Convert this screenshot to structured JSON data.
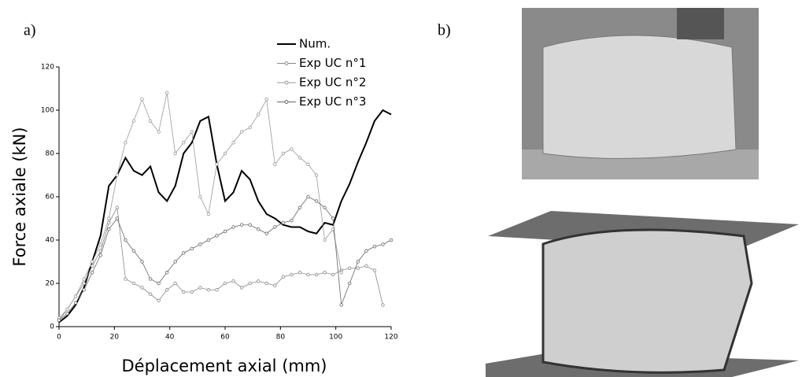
{
  "panel_labels": [
    "a)",
    "b)"
  ],
  "chart_data": {
    "type": "line",
    "xlabel": "Déplacement axial (mm)",
    "ylabel": "Force axiale (kN)",
    "xlim": [
      0,
      120
    ],
    "ylim": [
      0,
      120
    ],
    "xticks": [
      0,
      20,
      40,
      60,
      80,
      100,
      120
    ],
    "yticks": [
      0,
      20,
      40,
      60,
      80,
      100,
      120
    ],
    "x": [
      0,
      3,
      6,
      9,
      12,
      15,
      18,
      21,
      24,
      27,
      30,
      33,
      36,
      39,
      42,
      45,
      48,
      51,
      54,
      57,
      60,
      63,
      66,
      69,
      72,
      75,
      78,
      81,
      84,
      87,
      90,
      93,
      96,
      99,
      102,
      105,
      108,
      111,
      114,
      117,
      120
    ],
    "series": [
      {
        "name": "Num.",
        "color": "#000000",
        "values": [
          2,
          5,
          10,
          18,
          30,
          42,
          65,
          70,
          78,
          72,
          70,
          74,
          62,
          58,
          65,
          80,
          85,
          95,
          97,
          75,
          58,
          62,
          72,
          68,
          58,
          52,
          50,
          47,
          46,
          46,
          44,
          43,
          48,
          47,
          58,
          66,
          76,
          85,
          95,
          100,
          98
        ]
      },
      {
        "name": "Exp UC n°1",
        "color": "#888888",
        "values": [
          3,
          8,
          14,
          20,
          28,
          35,
          48,
          55,
          22,
          20,
          18,
          15,
          12,
          17,
          20,
          16,
          16,
          18,
          17,
          17,
          20,
          21,
          18,
          20,
          21,
          20,
          19,
          23,
          24,
          25,
          24,
          24,
          25,
          24,
          26,
          27,
          27,
          28,
          26,
          10,
          null
        ]
      },
      {
        "name": "Exp UC n°2",
        "color": "#999999",
        "values": [
          4,
          8,
          14,
          22,
          30,
          38,
          50,
          70,
          85,
          95,
          105,
          95,
          90,
          108,
          80,
          85,
          90,
          60,
          52,
          75,
          80,
          85,
          90,
          92,
          98,
          105,
          75,
          80,
          82,
          78,
          75,
          70,
          40,
          45,
          25,
          null,
          null,
          null,
          null,
          null,
          null
        ]
      },
      {
        "name": "Exp UC n°3",
        "color": "#666666",
        "values": [
          3,
          6,
          11,
          17,
          25,
          33,
          45,
          50,
          40,
          35,
          30,
          22,
          20,
          25,
          30,
          34,
          36,
          38,
          40,
          42,
          44,
          46,
          47,
          47,
          45,
          43,
          46,
          48,
          49,
          55,
          60,
          58,
          55,
          50,
          10,
          20,
          30,
          35,
          37,
          38,
          40
        ]
      }
    ]
  }
}
